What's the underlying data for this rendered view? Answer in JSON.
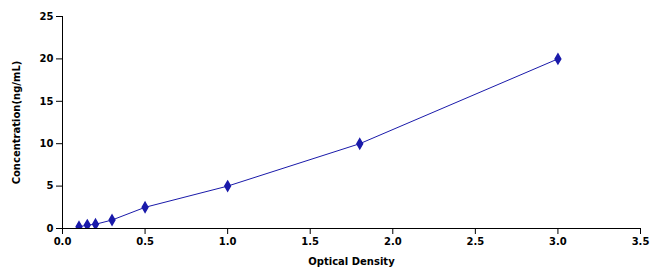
{
  "chart_data": {
    "type": "line",
    "x": [
      0.1,
      0.15,
      0.2,
      0.3,
      0.5,
      1.0,
      1.8,
      3.0
    ],
    "values": [
      0.2,
      0.4,
      0.5,
      1.0,
      2.5,
      5.0,
      10.0,
      20.0
    ],
    "xlabel": "Optical Density",
    "ylabel": "Concentration(ng/mL)",
    "xlim": [
      0,
      3.5
    ],
    "ylim": [
      0,
      25
    ],
    "xticks": [
      {
        "value": 0,
        "label": "0.0"
      },
      0.5,
      {
        "value": 1,
        "label": "1.0"
      },
      1.5,
      {
        "value": 2,
        "label": "2.0"
      },
      2.5,
      {
        "value": 3,
        "label": "3.0"
      },
      3.5
    ],
    "yticks": [
      0,
      5,
      10,
      15,
      20,
      25
    ],
    "color": "#1a1aaa",
    "marker": "diamond",
    "grid": false
  }
}
